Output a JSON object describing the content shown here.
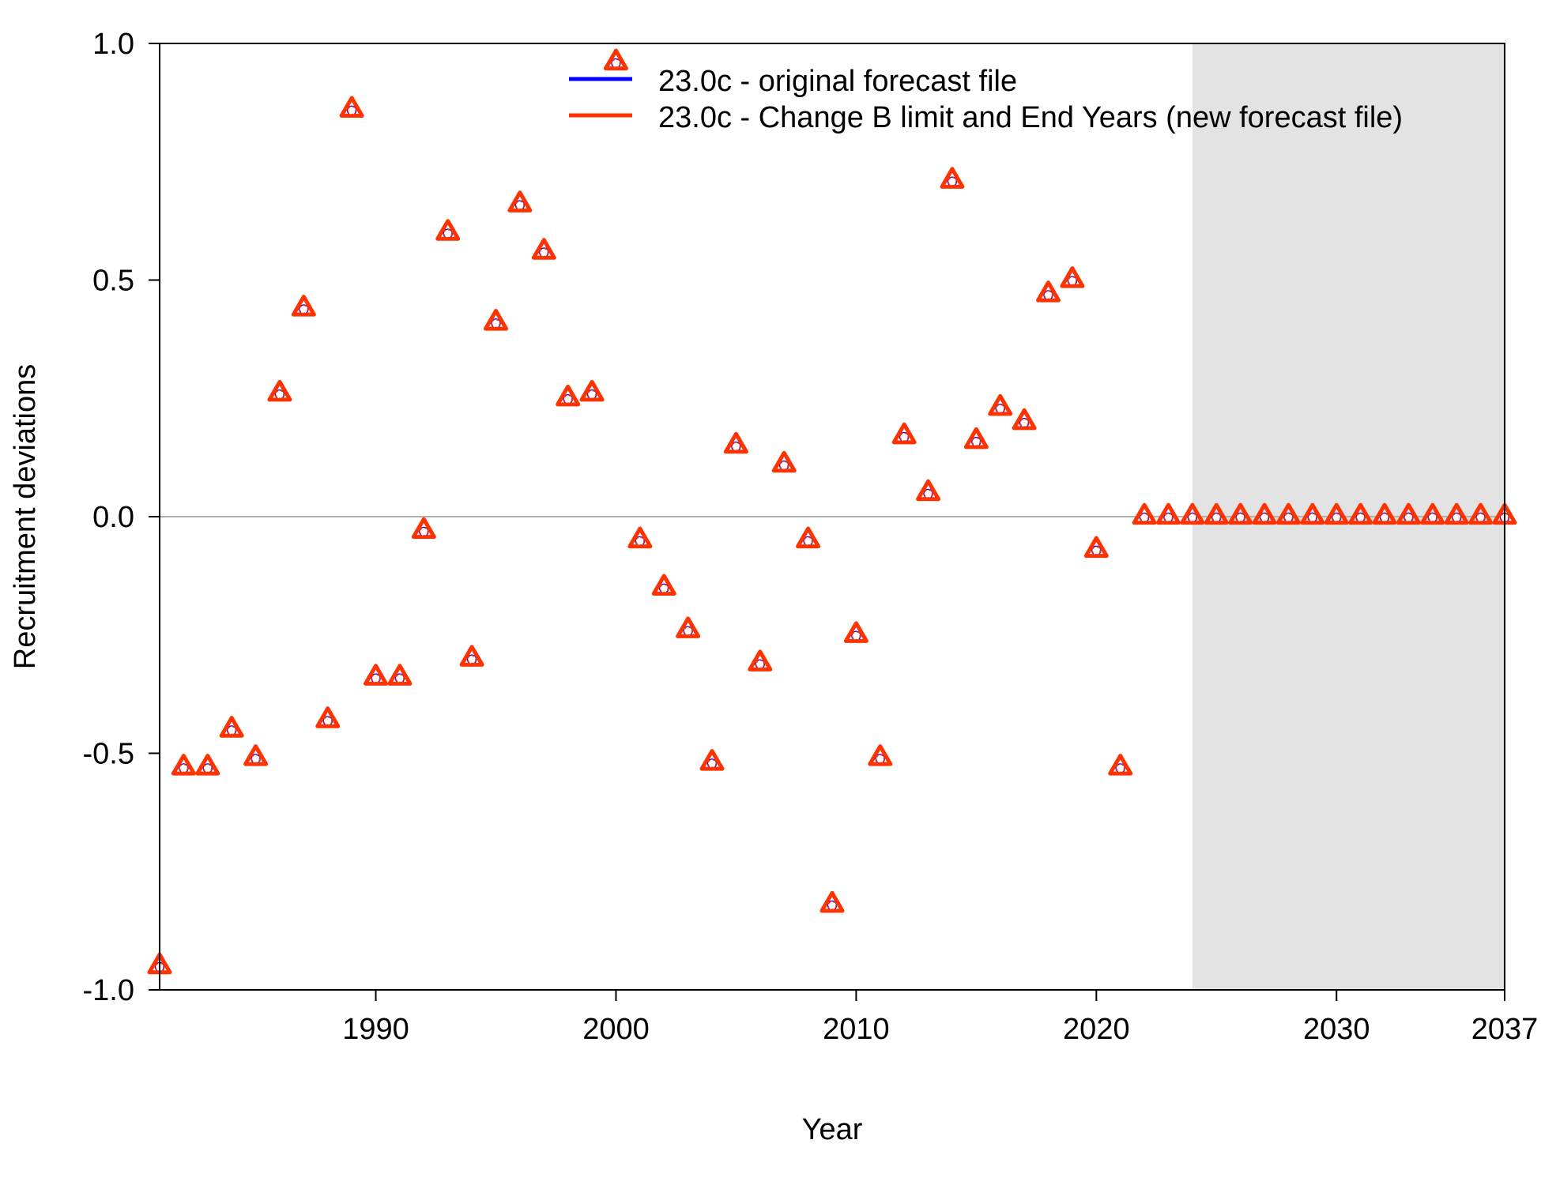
{
  "chart_data": {
    "type": "scatter",
    "xlabel": "Year",
    "ylabel": "Recruitment deviations",
    "xlim": [
      1981,
      2037
    ],
    "ylim": [
      -1.0,
      1.0
    ],
    "x_ticks": [
      1990,
      2000,
      2010,
      2020,
      2030,
      2037
    ],
    "x_tick_labels": [
      "1990",
      "2000",
      "2010",
      "2020",
      "2030",
      "2037"
    ],
    "y_ticks": [
      -1.0,
      -0.5,
      0.0,
      0.5,
      1.0
    ],
    "y_tick_labels": [
      "-1.0",
      "-0.5",
      "0.0",
      "0.5",
      "1.0"
    ],
    "forecast_region": [
      2024,
      2037
    ],
    "reference_line_y": 0,
    "legend_position": "top-right",
    "colors": {
      "series1": "#0000ff",
      "series2": "#ff3300",
      "forecast_shade": "#e3e3e3",
      "reference_line": "#b0b0b0"
    },
    "x": [
      1981,
      1982,
      1983,
      1984,
      1985,
      1986,
      1987,
      1988,
      1989,
      1990,
      1991,
      1992,
      1993,
      1994,
      1995,
      1996,
      1997,
      1998,
      1999,
      2000,
      2001,
      2002,
      2003,
      2004,
      2005,
      2006,
      2007,
      2008,
      2009,
      2010,
      2011,
      2012,
      2013,
      2014,
      2015,
      2016,
      2017,
      2018,
      2019,
      2020,
      2021,
      2022,
      2023,
      2024,
      2025,
      2026,
      2027,
      2028,
      2029,
      2030,
      2031,
      2032,
      2033,
      2034,
      2035,
      2036,
      2037
    ],
    "series": [
      {
        "name": "23.0c - original forecast file",
        "values": [
          -0.95,
          -0.53,
          -0.53,
          -0.45,
          -0.51,
          0.26,
          0.44,
          -0.43,
          0.86,
          -0.34,
          -0.34,
          -0.03,
          0.6,
          -0.3,
          0.41,
          0.66,
          0.56,
          0.25,
          0.26,
          0.96,
          -0.05,
          -0.15,
          -0.24,
          -0.52,
          0.15,
          -0.31,
          0.11,
          -0.05,
          -0.82,
          -0.25,
          -0.51,
          0.17,
          0.05,
          0.71,
          0.16,
          0.23,
          0.2,
          0.47,
          0.5,
          -0.07,
          -0.53,
          0,
          0,
          0,
          0,
          0,
          0,
          0,
          0,
          0,
          0,
          0,
          0,
          0,
          0,
          0,
          0
        ]
      },
      {
        "name": "23.0c - Change B limit and End Years (new forecast file)",
        "values": [
          -0.95,
          -0.53,
          -0.53,
          -0.45,
          -0.51,
          0.26,
          0.44,
          -0.43,
          0.86,
          -0.34,
          -0.34,
          -0.03,
          0.6,
          -0.3,
          0.41,
          0.66,
          0.56,
          0.25,
          0.26,
          0.96,
          -0.05,
          -0.15,
          -0.24,
          -0.52,
          0.15,
          -0.31,
          0.11,
          -0.05,
          -0.82,
          -0.25,
          -0.51,
          0.17,
          0.05,
          0.71,
          0.16,
          0.23,
          0.2,
          0.47,
          0.5,
          -0.07,
          -0.53,
          0,
          0,
          0,
          0,
          0,
          0,
          0,
          0,
          0,
          0,
          0,
          0,
          0,
          0,
          0,
          0
        ]
      }
    ]
  }
}
